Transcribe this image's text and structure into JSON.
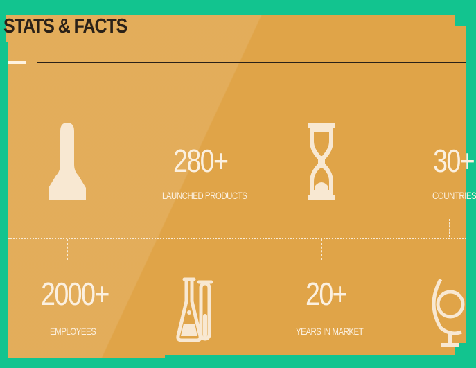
{
  "header": {
    "title": "STATS & FACTS"
  },
  "stats": [
    {
      "value": "280+",
      "label": "LAUNCHED PRODUCTS"
    },
    {
      "value": "30+",
      "label": "COUNTRIES"
    },
    {
      "value": "2000+",
      "label": "EMPLOYEES"
    },
    {
      "value": "20+",
      "label": "YEARS IN MARKET"
    }
  ],
  "icons": [
    "person-icon",
    "hourglass-icon",
    "lab-flask-icon",
    "globe-icon"
  ],
  "colors": {
    "panel": "#e0a448",
    "frame": "#12c48f",
    "text": "#fbf0e0",
    "title": "#2a2118"
  }
}
